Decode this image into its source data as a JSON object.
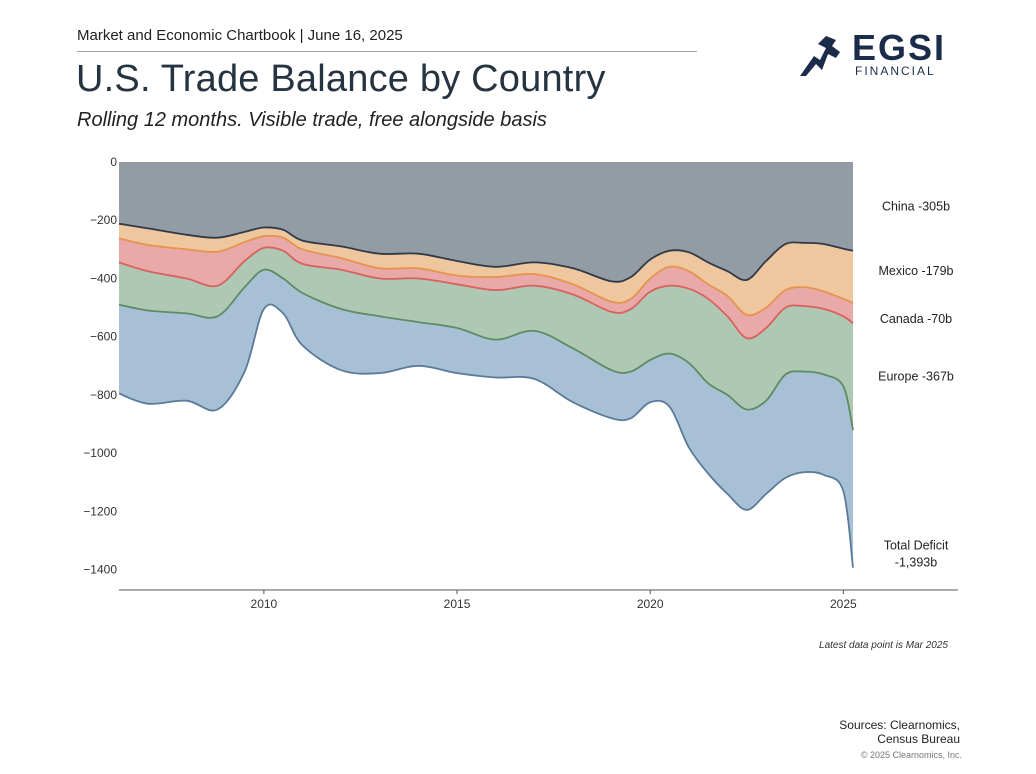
{
  "header": {
    "chartbook": "Market and Economic Chartbook | June 16, 2025",
    "title": "U.S. Trade Balance by Country",
    "subtitle": "Rolling 12 months. Visible trade, free alongside basis"
  },
  "logo": {
    "name": "EGSI",
    "sub": "FINANCIAL",
    "color": "#1b2c4a"
  },
  "footer": {
    "note": "Latest data point is Mar 2025",
    "sources_line1": "Sources: Clearnomics,",
    "sources_line2": "Census Bureau",
    "copyright": "© 2025 Clearnomics, Inc."
  },
  "chart_data": {
    "type": "area",
    "stacked": true,
    "xlim": [
      2006.25,
      2025.25
    ],
    "ylim": [
      -1470,
      0
    ],
    "x_ticks": [
      2010,
      2015,
      2020,
      2025
    ],
    "y_ticks": [
      0,
      -200,
      -400,
      -600,
      -800,
      -1000,
      -1200,
      -1400
    ],
    "y_tick_labels": [
      "0",
      "−200",
      "−400",
      "−600",
      "−800",
      "−1000",
      "−1200",
      "−1400"
    ],
    "grid": false,
    "x": [
      2006.25,
      2007,
      2008,
      2008.8,
      2009.5,
      2010,
      2010.5,
      2011,
      2012,
      2013,
      2014,
      2015,
      2016,
      2017,
      2018,
      2019,
      2019.5,
      2020,
      2020.5,
      2021,
      2021.5,
      2022,
      2022.5,
      2023,
      2023.5,
      2024,
      2024.5,
      2025,
      2025.25
    ],
    "cumulative_boundaries": [
      {
        "series": "China",
        "values": [
          -212,
          -228,
          -250,
          -260,
          -240,
          -225,
          -233,
          -270,
          -290,
          -315,
          -315,
          -340,
          -360,
          -345,
          -365,
          -410,
          -395,
          -335,
          -305,
          -310,
          -345,
          -375,
          -405,
          -340,
          -282,
          -278,
          -282,
          -298,
          -305
        ]
      },
      {
        "series": "Mexico",
        "values": [
          -262,
          -285,
          -300,
          -308,
          -275,
          -255,
          -260,
          -300,
          -330,
          -365,
          -365,
          -390,
          -395,
          -385,
          -420,
          -480,
          -470,
          -400,
          -360,
          -375,
          -420,
          -460,
          -525,
          -500,
          -440,
          -430,
          -445,
          -470,
          -484
        ]
      },
      {
        "series": "Canada",
        "values": [
          -345,
          -375,
          -400,
          -425,
          -340,
          -295,
          -305,
          -350,
          -370,
          -400,
          -400,
          -420,
          -440,
          -425,
          -455,
          -515,
          -505,
          -445,
          -425,
          -435,
          -470,
          -530,
          -605,
          -570,
          -500,
          -495,
          -505,
          -530,
          -554
        ]
      },
      {
        "series": "Europe",
        "values": [
          -490,
          -510,
          -520,
          -530,
          -430,
          -370,
          -400,
          -450,
          -505,
          -530,
          -550,
          -570,
          -610,
          -580,
          -640,
          -715,
          -720,
          -680,
          -658,
          -690,
          -760,
          -800,
          -850,
          -820,
          -730,
          -720,
          -730,
          -770,
          -921
        ]
      },
      {
        "series": "Total Deficit",
        "values": [
          -795,
          -830,
          -820,
          -850,
          -720,
          -505,
          -520,
          -630,
          -715,
          -725,
          -700,
          -725,
          -740,
          -745,
          -825,
          -880,
          -880,
          -825,
          -840,
          -980,
          -1070,
          -1140,
          -1195,
          -1140,
          -1085,
          -1065,
          -1075,
          -1130,
          -1393
        ]
      }
    ],
    "series": [
      {
        "name": "China",
        "label": "China -305b",
        "color": "#939ca5",
        "line": "#2e3a48"
      },
      {
        "name": "Mexico",
        "label": "Mexico -179b",
        "color": "#efc79e",
        "line": "#e5944e"
      },
      {
        "name": "Canada",
        "label": "Canada -70b",
        "color": "#e8a9a8",
        "line": "#d9615e"
      },
      {
        "name": "Europe",
        "label": "Europe -367b",
        "color": "#aec8b4",
        "line": "#5e8c62"
      },
      {
        "name": "Total Deficit",
        "label_line1": "Total Deficit",
        "label_line2": "-1,393b",
        "color": "#a8c0d6",
        "line": "#5a7a99"
      }
    ]
  }
}
